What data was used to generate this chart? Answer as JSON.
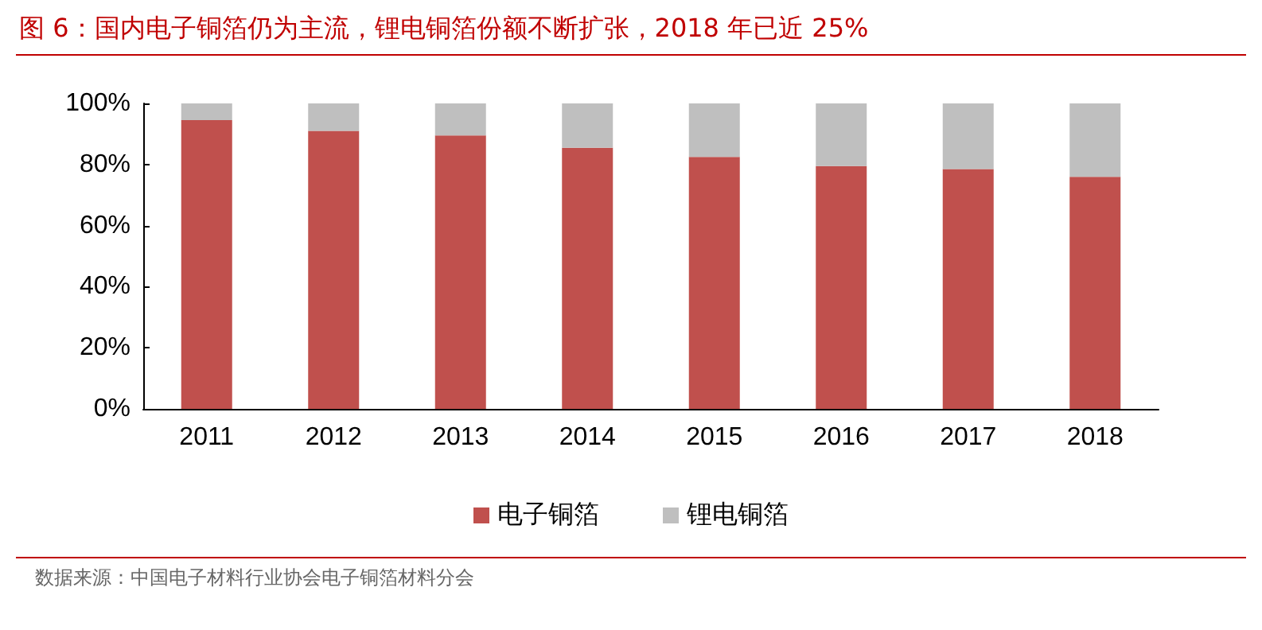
{
  "chart_data": {
    "type": "bar",
    "stacked": true,
    "title": "图 6：国内电子铜箔仍为主流，锂电铜箔份额不断扩张，2018 年已近 25%",
    "categories": [
      "2011",
      "2012",
      "2013",
      "2014",
      "2015",
      "2016",
      "2017",
      "2018"
    ],
    "series": [
      {
        "name": "电子铜箔",
        "color": "#c0504d",
        "values": [
          94.5,
          91,
          89.5,
          85.5,
          82.5,
          79.5,
          78.5,
          76
        ]
      },
      {
        "name": "锂电铜箔",
        "color": "#bfbfbf",
        "values": [
          5.5,
          9,
          10.5,
          14.5,
          17.5,
          20.5,
          21.5,
          24
        ]
      }
    ],
    "ylim": [
      0,
      100
    ],
    "yticks": [
      {
        "value": 0,
        "label": "0%"
      },
      {
        "value": 20,
        "label": "20%"
      },
      {
        "value": 40,
        "label": "40%"
      },
      {
        "value": 60,
        "label": "60%"
      },
      {
        "value": 80,
        "label": "80%"
      },
      {
        "value": 100,
        "label": "100%"
      }
    ],
    "grid": false,
    "legend": "bottom",
    "annotations": [
      "数据来源：中国电子材料行业协会电子铜箔材料分会"
    ]
  }
}
